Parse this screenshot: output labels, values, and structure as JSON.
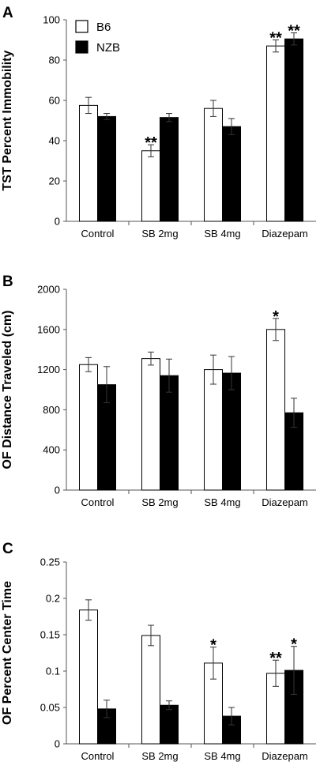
{
  "legend": {
    "b6_label": "B6",
    "nzb_label": "NZB",
    "b6_color": "#ffffff",
    "nzb_color": "#000000"
  },
  "chart_data": [
    {
      "panel": "A",
      "type": "bar",
      "ylabel": "TST Percent Immobility",
      "categories": [
        "Control",
        "SB 2mg",
        "SB 4mg",
        "Diazepam"
      ],
      "ylim": [
        0,
        100
      ],
      "yticks": [
        "0",
        "20",
        "40",
        "60",
        "80",
        "100"
      ],
      "series": [
        {
          "name": "B6",
          "values": [
            57.5,
            35,
            56,
            87
          ],
          "errors": [
            4,
            3,
            4,
            3
          ]
        },
        {
          "name": "NZB",
          "values": [
            52,
            51.5,
            47,
            90.5
          ],
          "errors": [
            1.5,
            2,
            4,
            3
          ]
        }
      ],
      "significance": [
        {
          "series": "B6",
          "category": "SB 2mg",
          "mark": "**"
        },
        {
          "series": "B6",
          "category": "Diazepam",
          "mark": "**"
        },
        {
          "series": "NZB",
          "category": "Diazepam",
          "mark": "**"
        }
      ]
    },
    {
      "panel": "B",
      "type": "bar",
      "ylabel": "OF Distance Traveled (cm)",
      "categories": [
        "Control",
        "SB 2mg",
        "SB 4mg",
        "Diazepam"
      ],
      "ylim": [
        0,
        2000
      ],
      "yticks": [
        "0",
        "400",
        "800",
        "1200",
        "1600",
        "2000"
      ],
      "series": [
        {
          "name": "B6",
          "values": [
            1250,
            1310,
            1200,
            1600
          ],
          "errors": [
            70,
            65,
            145,
            110
          ]
        },
        {
          "name": "NZB",
          "values": [
            1050,
            1140,
            1165,
            770
          ],
          "errors": [
            180,
            165,
            165,
            145
          ]
        }
      ],
      "significance": [
        {
          "series": "B6",
          "category": "Diazepam",
          "mark": "*"
        }
      ]
    },
    {
      "panel": "C",
      "type": "bar",
      "ylabel": "OF Percent Center Time",
      "categories": [
        "Control",
        "SB 2mg",
        "SB 4mg",
        "Diazepam"
      ],
      "ylim": [
        0,
        0.25
      ],
      "yticks": [
        "0",
        "0.05",
        "0.1",
        "0.15",
        "0.2",
        "0.25"
      ],
      "series": [
        {
          "name": "B6",
          "values": [
            0.184,
            0.149,
            0.111,
            0.097
          ],
          "errors": [
            0.014,
            0.014,
            0.022,
            0.018
          ]
        },
        {
          "name": "NZB",
          "values": [
            0.048,
            0.053,
            0.038,
            0.101
          ],
          "errors": [
            0.012,
            0.006,
            0.012,
            0.033
          ]
        }
      ],
      "significance": [
        {
          "series": "B6",
          "category": "SB 4mg",
          "mark": "*"
        },
        {
          "series": "B6",
          "category": "Diazepam",
          "mark": "**"
        },
        {
          "series": "NZB",
          "category": "Diazepam",
          "mark": "*"
        }
      ]
    }
  ]
}
